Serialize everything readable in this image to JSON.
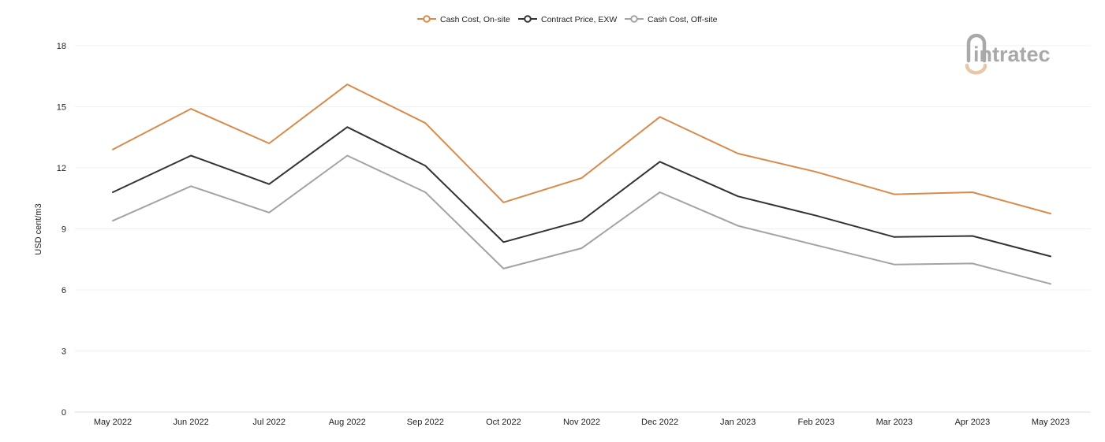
{
  "chart_data": {
    "type": "line",
    "title": "",
    "xlabel": "",
    "ylabel": "USD cent/m3",
    "ylim": [
      0,
      18
    ],
    "yticks": [
      0,
      3,
      6,
      9,
      12,
      15,
      18
    ],
    "grid": true,
    "legend_position": "top-center",
    "categories": [
      "May 2022",
      "Jun 2022",
      "Jul 2022",
      "Aug 2022",
      "Sep 2022",
      "Oct 2022",
      "Nov 2022",
      "Dec 2022",
      "Jan 2023",
      "Feb 2023",
      "Mar 2023",
      "Apr 2023",
      "May 2023"
    ],
    "series": [
      {
        "name": "Cash Cost, On-site",
        "color": "#d98a4a",
        "values": [
          12.9,
          14.9,
          13.2,
          16.1,
          14.2,
          10.3,
          11.5,
          14.5,
          12.7,
          11.8,
          10.7,
          10.8,
          9.75
        ]
      },
      {
        "name": "Contract Price, EXW",
        "color": "#333333",
        "values": [
          10.8,
          12.6,
          11.2,
          14.0,
          12.1,
          8.35,
          9.4,
          12.3,
          10.6,
          9.65,
          8.6,
          8.65,
          7.65
        ]
      },
      {
        "name": "Cash Cost, Off-site",
        "color": "#a3a3a3",
        "values": [
          9.4,
          11.1,
          9.8,
          12.6,
          10.8,
          7.05,
          8.05,
          10.8,
          9.15,
          8.2,
          7.25,
          7.3,
          6.3
        ]
      }
    ]
  },
  "logo": {
    "text": "intratec",
    "color": "#a9a9a9",
    "accent_color": "#e7c7a8"
  }
}
